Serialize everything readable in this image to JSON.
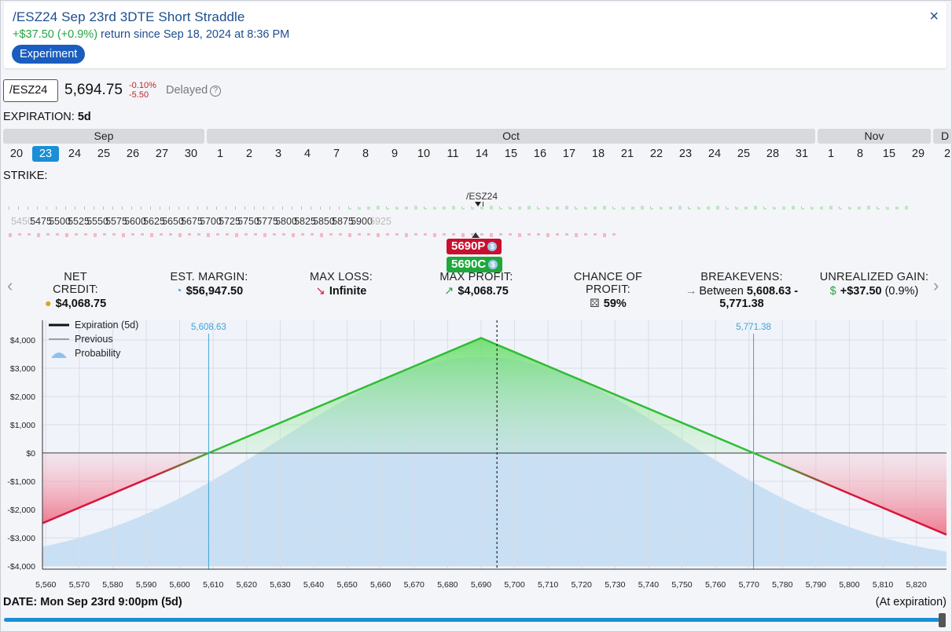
{
  "header": {
    "title": "/ESZ24 Sep 23rd 3DTE Short Straddle",
    "return_value": "+$37.50 (+0.9%)",
    "return_text": " return since Sep 18, 2024 at 8:36 PM",
    "tag": "Experiment",
    "close_label": "×"
  },
  "quote": {
    "symbol": "/ESZ24",
    "price": "5,694.75",
    "change_pct": "-0.10%",
    "change_abs": "-5.50",
    "delayed": "Delayed",
    "help_icon": "question-circle-icon"
  },
  "expiration": {
    "label": "EXPIRATION:",
    "value": "5d",
    "months": [
      "Sep",
      "Oct",
      "Nov",
      "D"
    ],
    "days": [
      "20",
      "23",
      "24",
      "25",
      "26",
      "27",
      "30",
      "1",
      "2",
      "3",
      "4",
      "7",
      "8",
      "9",
      "10",
      "11",
      "14",
      "15",
      "16",
      "17",
      "18",
      "21",
      "22",
      "23",
      "24",
      "25",
      "28",
      "31",
      "1",
      "8",
      "15",
      "29",
      "2"
    ],
    "selected_index": 1
  },
  "strike": {
    "label": "STRIKE:",
    "underlying_label": "/ESZ24",
    "strikes": [
      "5450",
      "5475",
      "5500",
      "5525",
      "5550",
      "5575",
      "5600",
      "5625",
      "5650",
      "5675",
      "5700",
      "5725",
      "5750",
      "5775",
      "5800",
      "5825",
      "5850",
      "5875",
      "5900",
      "5925"
    ],
    "put_chip": "5690P",
    "call_chip": "5690C",
    "coin_symbol": "$"
  },
  "stats": {
    "net_credit_label": "NET CREDIT:",
    "net_credit": "$4,068.75",
    "margin_label": "EST. MARGIN:",
    "margin": "$56,947.50",
    "max_loss_label": "MAX LOSS:",
    "max_loss": "Infinite",
    "max_profit_label": "MAX PROFIT:",
    "max_profit": "$4,068.75",
    "chance_label": "CHANCE OF PROFIT:",
    "chance": "59%",
    "breakevens_label": "BREAKEVENS:",
    "breakevens_prefix": "Between ",
    "breakevens_value": "5,608.63 -",
    "breakevens_value2": "5,771.38",
    "unrealized_label": "UNREALIZED GAIN:",
    "unrealized_value": "+$37.50",
    "unrealized_pct": " (0.9%)"
  },
  "chart_data": {
    "type": "line",
    "legend": [
      "Expiration (5d)",
      "Previous",
      "Probability"
    ],
    "x_ticks": [
      5560,
      5570,
      5580,
      5590,
      5600,
      5610,
      5620,
      5630,
      5640,
      5650,
      5660,
      5670,
      5680,
      5690,
      5700,
      5710,
      5720,
      5730,
      5740,
      5750,
      5760,
      5770,
      5780,
      5790,
      5800,
      5810,
      5820
    ],
    "y_ticks": [
      "$4,000",
      "$3,000",
      "$2,000",
      "$1,000",
      "$0",
      "-$1,000",
      "-$2,000",
      "-$3,000",
      "-$4,000"
    ],
    "xlim": [
      5559,
      5829
    ],
    "ylim": [
      -4000,
      4000
    ],
    "series": [
      {
        "name": "Expiration (5d)",
        "x": [
          5559,
          5608.63,
          5690,
          5771.38,
          5829
        ],
        "y": [
          -2484,
          0,
          4068.75,
          0,
          -2891
        ]
      }
    ],
    "breakevens": [
      "5,608.63",
      "5,771.38"
    ],
    "breakeven_values": [
      5608.63,
      5771.38
    ],
    "current_price": 5694.75,
    "colors": {
      "profit": "#22c33a",
      "loss": "#d8163a",
      "probability": "#bcd8f2",
      "breakeven": "#3fa3d4"
    }
  },
  "footer": {
    "date_label": "DATE:",
    "date_value": "Mon Sep 23rd 9:00pm (5d)",
    "at_expiration": "(At expiration)"
  }
}
